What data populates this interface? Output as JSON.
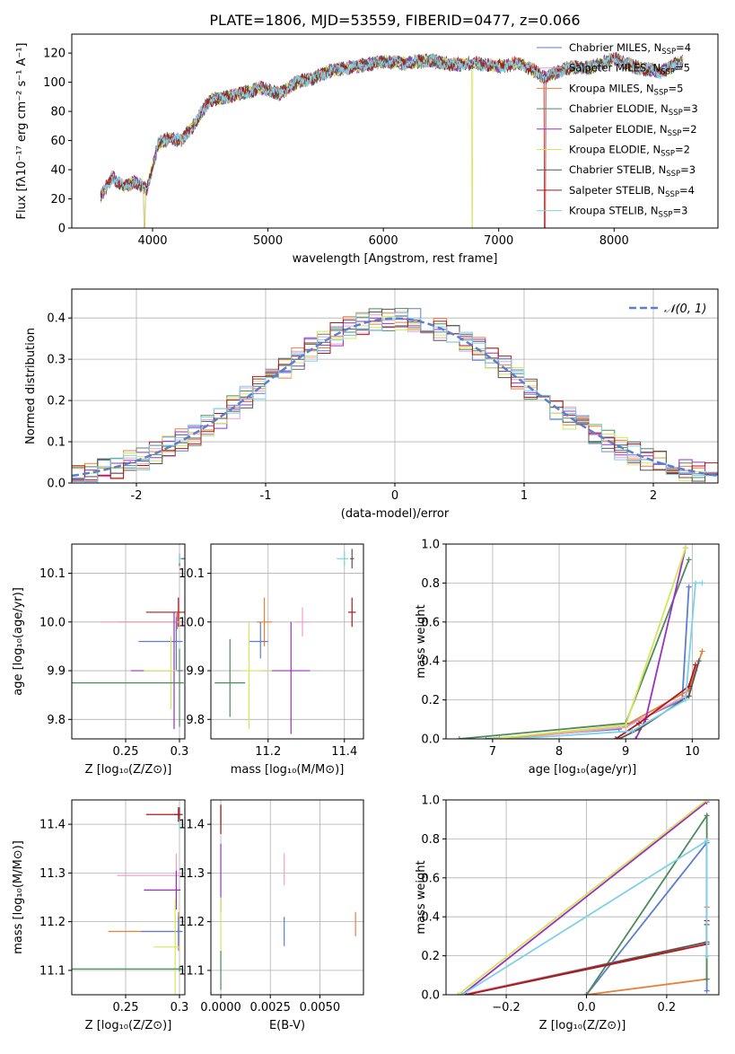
{
  "figure_title": "PLATE=1806, MJD=53559, FIBERID=0477, z=0.066",
  "chart_data": [
    {
      "id": "spectrum",
      "type": "line",
      "xlabel": "wavelength [Angstrom, rest frame]",
      "ylabel": "Flux [fλ10⁻¹⁷ erg cm⁻² s⁻¹ A⁻¹]",
      "xlim": [
        3300,
        8900
      ],
      "ylim": [
        0,
        133
      ],
      "xticks": [
        4000,
        5000,
        6000,
        7000,
        8000
      ],
      "yticks": [
        0,
        20,
        40,
        60,
        80,
        100,
        120
      ],
      "grid": false,
      "legend": "top-right",
      "x": [
        3550,
        3650,
        3750,
        3850,
        3950,
        4050,
        4150,
        4250,
        4350,
        4500,
        4650,
        4800,
        4950,
        5100,
        5250,
        5400,
        5550,
        5700,
        5850,
        6000,
        6200,
        6400,
        6600,
        6800,
        7000,
        7200,
        7400,
        7600,
        7800,
        8000,
        8200,
        8400,
        8600
      ],
      "y": [
        22,
        35,
        28,
        32,
        26,
        58,
        62,
        60,
        70,
        88,
        90,
        93,
        96,
        92,
        100,
        103,
        108,
        110,
        112,
        114,
        113,
        115,
        112,
        113,
        111,
        113,
        103,
        110,
        110,
        116,
        110,
        107,
        115
      ],
      "series": [
        {
          "name": "Chabrier MILES, N_SSP=4",
          "color": "#5b7fcc"
        },
        {
          "name": "Salpeter MILES, N_SSP=5",
          "color": "#f0a0c8"
        },
        {
          "name": "Kroupa MILES, N_SSP=5",
          "color": "#e8803a"
        },
        {
          "name": "Chabrier ELODIE, N_SSP=3",
          "color": "#4e8a5c"
        },
        {
          "name": "Salpeter ELODIE, N_SSP=2",
          "color": "#9b30c0"
        },
        {
          "name": "Kroupa ELODIE, N_SSP=2",
          "color": "#d4e65a"
        },
        {
          "name": "Chabrier STELIB, N_SSP=3",
          "color": "#555555"
        },
        {
          "name": "Salpeter STELIB, N_SSP=4",
          "color": "#b01818"
        },
        {
          "name": "Kroupa STELIB, N_SSP=3",
          "color": "#7fd0e8"
        }
      ]
    },
    {
      "id": "residuals",
      "type": "line",
      "xlabel": "(data-model)/error",
      "ylabel": "Normed distribution",
      "xlim": [
        -2.5,
        2.5
      ],
      "ylim": [
        0,
        0.47
      ],
      "xticks": [
        -2,
        -1,
        0,
        1,
        2
      ],
      "yticks": [
        0.0,
        0.1,
        0.2,
        0.3,
        0.4
      ],
      "grid": true,
      "legend": "top-right",
      "gaussian_label": "𝒩(0, 1)",
      "gaussian_color": "#5b7fcc",
      "bin_width": 0.1
    },
    {
      "id": "age-vs-Z",
      "type": "scatter",
      "xlabel": "Z [log₁₀(Z/Z⊙)]",
      "ylabel": "age  [log₁₀(age/yr)]",
      "xlim": [
        0.2,
        0.305
      ],
      "ylim": [
        9.76,
        10.16
      ],
      "xticks": [
        0.25,
        0.3
      ],
      "yticks": [
        9.8,
        9.9,
        10.0,
        10.1
      ],
      "grid": true,
      "points": [
        {
          "x": 0.3,
          "y": 10.13,
          "color": "#555555"
        },
        {
          "x": 0.3,
          "y": 10.13,
          "color": "#7fd0e8"
        },
        {
          "x": 0.299,
          "y": 10.02,
          "color": "#b01818"
        },
        {
          "x": 0.298,
          "y": 10.0,
          "color": "#e8803a"
        },
        {
          "x": 0.297,
          "y": 10.0,
          "color": "#f0a0c8"
        },
        {
          "x": 0.297,
          "y": 9.96,
          "color": "#5b7fcc"
        },
        {
          "x": 0.295,
          "y": 9.9,
          "color": "#9b30c0"
        },
        {
          "x": 0.292,
          "y": 9.9,
          "color": "#d4e65a"
        },
        {
          "x": 0.3,
          "y": 9.875,
          "color": "#4e8a5c"
        }
      ]
    },
    {
      "id": "age-vs-mass",
      "type": "scatter",
      "xlabel": "mass [log₁₀(M/M⊙)]",
      "ylabel": "",
      "xlim": [
        11.05,
        11.45
      ],
      "ylim": [
        9.76,
        10.16
      ],
      "xticks": [
        11.2,
        11.4
      ],
      "yticks": [
        9.8,
        9.9,
        10.0,
        10.1
      ],
      "grid": true,
      "points": [
        {
          "x": 11.42,
          "y": 10.13,
          "color": "#555555"
        },
        {
          "x": 11.4,
          "y": 10.13,
          "color": "#7fd0e8"
        },
        {
          "x": 11.42,
          "y": 10.02,
          "color": "#b01818"
        },
        {
          "x": 11.19,
          "y": 10.0,
          "color": "#e8803a"
        },
        {
          "x": 11.29,
          "y": 10.0,
          "color": "#f0a0c8"
        },
        {
          "x": 11.18,
          "y": 9.96,
          "color": "#5b7fcc"
        },
        {
          "x": 11.26,
          "y": 9.9,
          "color": "#9b30c0"
        },
        {
          "x": 11.15,
          "y": 9.9,
          "color": "#d4e65a"
        },
        {
          "x": 11.1,
          "y": 9.875,
          "color": "#4e8a5c"
        }
      ]
    },
    {
      "id": "mass-weight-vs-age",
      "type": "line",
      "xlabel": "age  [log₁₀(age/yr)]",
      "ylabel": "mass weight",
      "xlim": [
        6.3,
        10.4
      ],
      "ylim": [
        0,
        1.0
      ],
      "xticks": [
        7,
        8,
        9,
        10
      ],
      "yticks": [
        0.0,
        0.2,
        0.4,
        0.6,
        0.8,
        1.0
      ],
      "grid": true
    },
    {
      "id": "mass-vs-Z",
      "type": "scatter",
      "xlabel": "Z [log₁₀(Z/Z⊙)]",
      "ylabel": "mass [log₁₀(M/M⊙)]",
      "xlim": [
        0.2,
        0.305
      ],
      "ylim": [
        11.05,
        11.45
      ],
      "xticks": [
        0.25,
        0.3
      ],
      "yticks": [
        11.1,
        11.2,
        11.3,
        11.4
      ],
      "grid": true
    },
    {
      "id": "mass-vs-ebv",
      "type": "scatter",
      "xlabel": "E(B-V)",
      "ylabel": "",
      "xlim": [
        -0.0005,
        0.0072
      ],
      "ylim": [
        11.05,
        11.45
      ],
      "xticks": [
        0.0,
        0.0025,
        0.005
      ],
      "xticklabels": [
        "0.0000",
        "0.0025",
        "0.0050"
      ],
      "yticks": [
        11.1,
        11.2,
        11.3,
        11.4
      ],
      "grid": true
    },
    {
      "id": "mass-weight-vs-Z",
      "type": "line",
      "xlabel": "Z [log₁₀(Z/Z⊙)]",
      "ylabel": "mass weight",
      "xlim": [
        -0.35,
        0.33
      ],
      "ylim": [
        0,
        1.0
      ],
      "xticks": [
        -0.2,
        0.0,
        0.2
      ],
      "xticklabels": [
        "−0.2",
        "0.0",
        "0.2"
      ],
      "yticks": [
        0.0,
        0.2,
        0.4,
        0.6,
        0.8,
        1.0
      ],
      "grid": true
    }
  ]
}
